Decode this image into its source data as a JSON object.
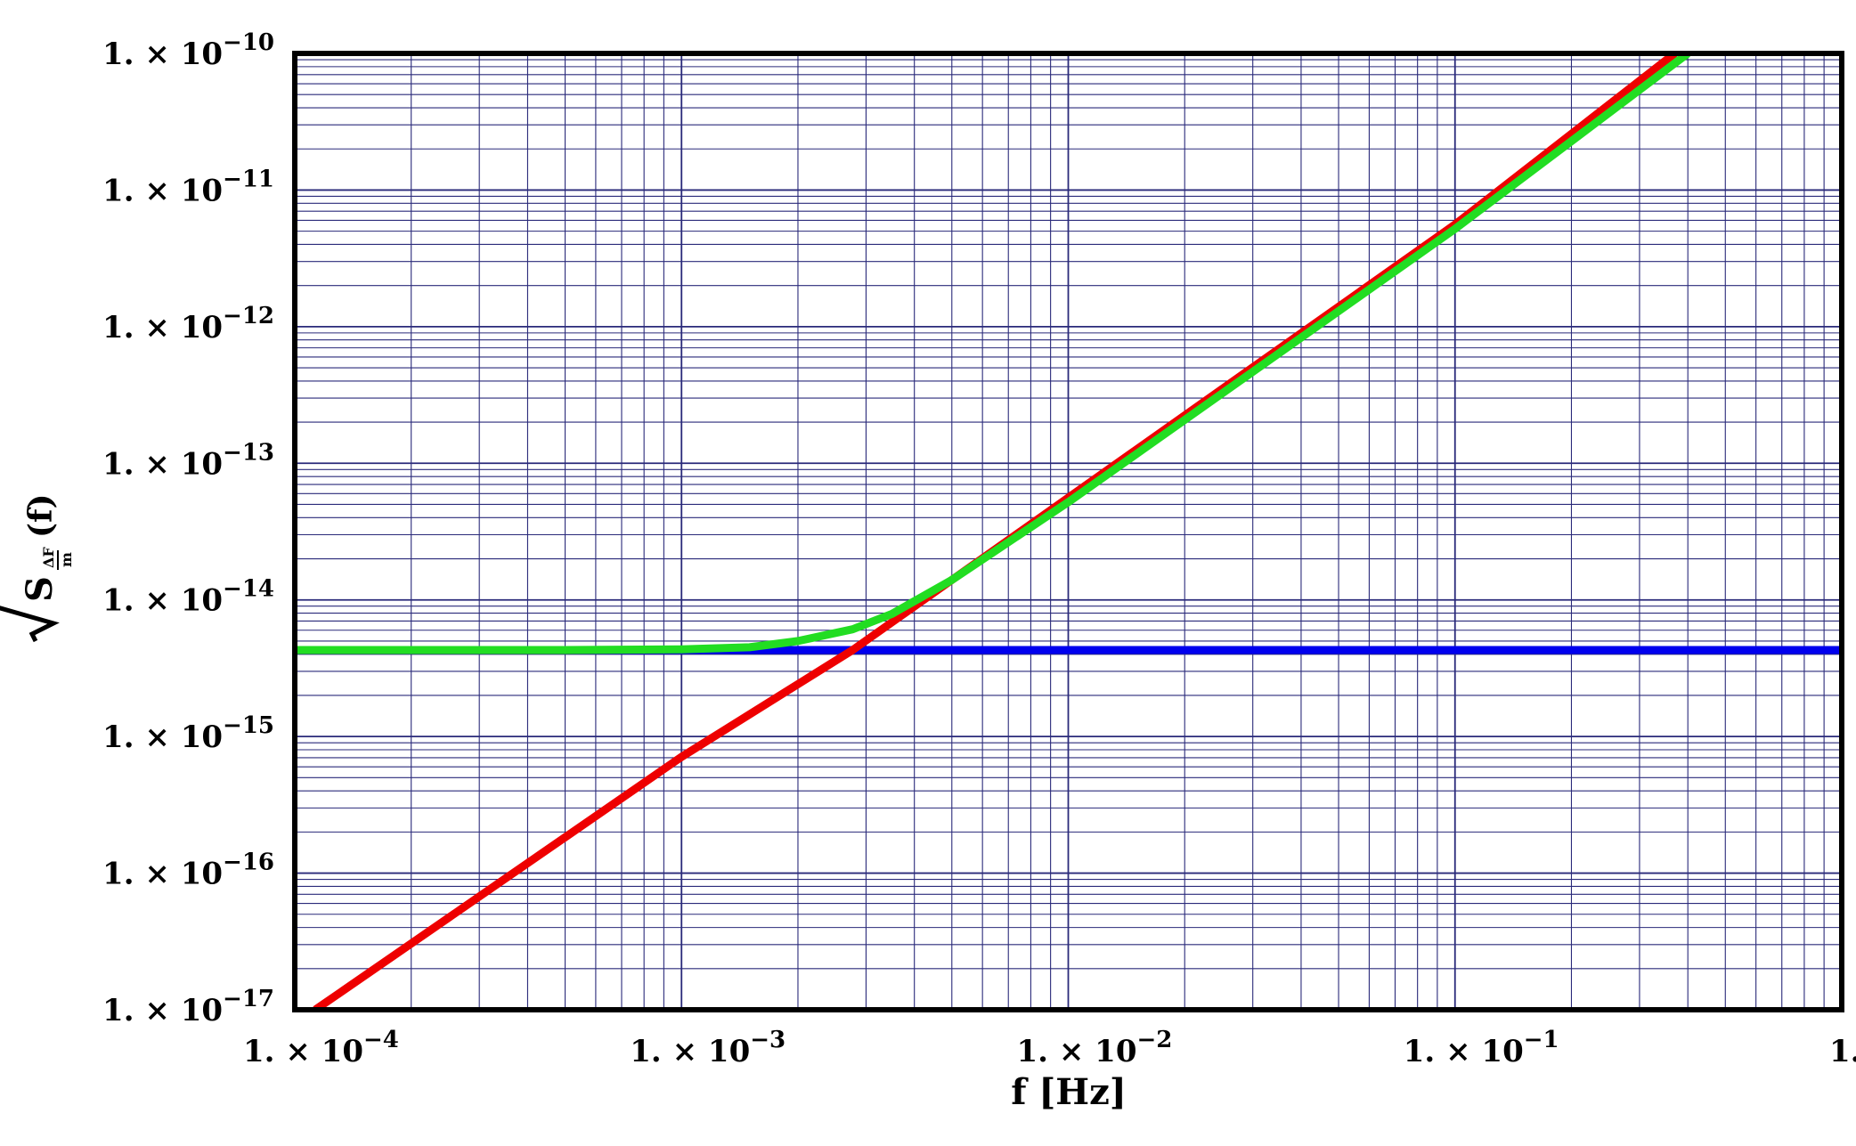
{
  "chart_data": {
    "type": "line",
    "title": "",
    "xlabel": "f [Hz]",
    "ylabel_symbol": "S",
    "ylabel_subscript_top": "ΔF",
    "ylabel_subscript_bottom": "m",
    "ylabel_arg": "(f)",
    "x_scale": "log",
    "y_scale": "log",
    "xlim": [
      0.0001,
      1
    ],
    "ylim": [
      1e-17,
      1e-10
    ],
    "grid": true,
    "x_ticks": [
      {
        "value": 0.0001,
        "mantissa": "1.",
        "times": "×",
        "base": "10",
        "exp": "−4"
      },
      {
        "value": 0.001,
        "mantissa": "1.",
        "times": "×",
        "base": "10",
        "exp": "−3"
      },
      {
        "value": 0.01,
        "mantissa": "1.",
        "times": "×",
        "base": "10",
        "exp": "−2"
      },
      {
        "value": 0.1,
        "mantissa": "1.",
        "times": "×",
        "base": "10",
        "exp": "−1"
      },
      {
        "value": 1,
        "mantissa": "1.",
        "times": "",
        "base": "",
        "exp": ""
      }
    ],
    "y_ticks": [
      {
        "value": 1e-10,
        "mantissa": "1.",
        "times": "×",
        "base": "10",
        "exp": "−10"
      },
      {
        "value": 1e-11,
        "mantissa": "1.",
        "times": "×",
        "base": "10",
        "exp": "−11"
      },
      {
        "value": 1e-12,
        "mantissa": "1.",
        "times": "×",
        "base": "10",
        "exp": "−12"
      },
      {
        "value": 1e-13,
        "mantissa": "1.",
        "times": "×",
        "base": "10",
        "exp": "−13"
      },
      {
        "value": 1e-14,
        "mantissa": "1.",
        "times": "×",
        "base": "10",
        "exp": "−14"
      },
      {
        "value": 1e-15,
        "mantissa": "1.",
        "times": "×",
        "base": "10",
        "exp": "−15"
      },
      {
        "value": 1e-16,
        "mantissa": "1.",
        "times": "×",
        "base": "10",
        "exp": "−16"
      },
      {
        "value": 1e-17,
        "mantissa": "1.",
        "times": "×",
        "base": "10",
        "exp": "−17"
      }
    ],
    "series": [
      {
        "color": "#0000ee",
        "x": [
          0.0001,
          1
        ],
        "y": [
          4.3e-15,
          4.3e-15
        ]
      },
      {
        "color": "#ee0000",
        "x": [
          0.000113,
          0.001,
          0.00277,
          0.01,
          0.1,
          0.37
        ],
        "y": [
          1e-17,
          7.1e-16,
          4.3e-15,
          5.6e-14,
          5.6e-12,
          1e-10
        ]
      },
      {
        "color": "#22dd22",
        "x": [
          0.0001,
          0.0005,
          0.001,
          0.0015,
          0.002,
          0.00277,
          0.0035,
          0.005,
          0.01,
          0.1,
          0.4
        ],
        "y": [
          4.3e-15,
          4.3e-15,
          4.35e-15,
          4.5e-15,
          5e-15,
          6.1e-15,
          7.9e-15,
          1.4e-14,
          5.2e-14,
          5.2e-12,
          1e-10
        ]
      }
    ],
    "colors": {
      "grid": "#2a2a7a",
      "frame": "#000000"
    }
  }
}
